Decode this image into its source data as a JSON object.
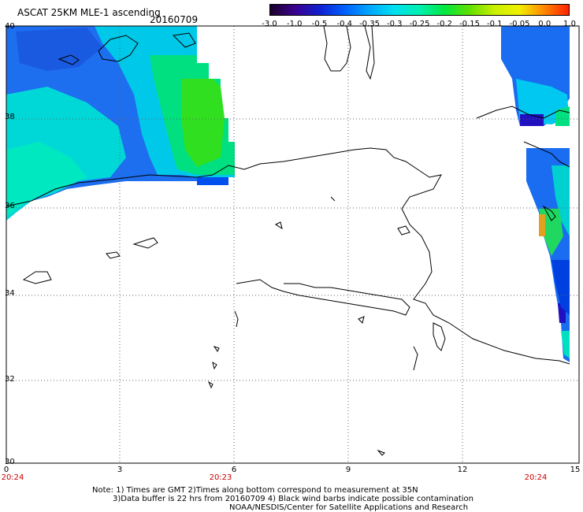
{
  "header": {
    "title": "ASCAT 25KM MLE-1 ascending",
    "date": "20160709"
  },
  "colorbar": {
    "tick_labels": [
      "-3.0",
      "-1.0",
      "-0.5",
      "-0.4",
      "-0.35",
      "-0.3",
      "-0.25",
      "-0.2",
      "-0.15",
      "-0.1",
      "-0.05",
      "0.0",
      "1.0"
    ],
    "colors": [
      "#1a0028",
      "#3a0090",
      "#1020d0",
      "#0060ff",
      "#00a8ff",
      "#00e0f0",
      "#00f0b0",
      "#00e840",
      "#60e000",
      "#c8f000",
      "#f0f000",
      "#ff8800",
      "#ff2000"
    ]
  },
  "map": {
    "lat_labels": [
      "40",
      "38",
      "36",
      "34",
      "32",
      "30"
    ],
    "lon_labels": [
      "0",
      "3",
      "6",
      "9",
      "12",
      "15"
    ],
    "time_labels": [
      "20:24",
      "20:23",
      "20:24"
    ],
    "coastline_color": "#000000",
    "grid_color": "#666666"
  },
  "notes": {
    "line1": "Note: 1) Times are GMT 2)Times along bottom correspond to measurement at 35N",
    "line2": "3)Data buffer is 22 hrs from 20160709 4) Black wind barbs indicate possible contamination",
    "line3": "NOAA/NESDIS/Center for Satellite Applications and Research"
  }
}
